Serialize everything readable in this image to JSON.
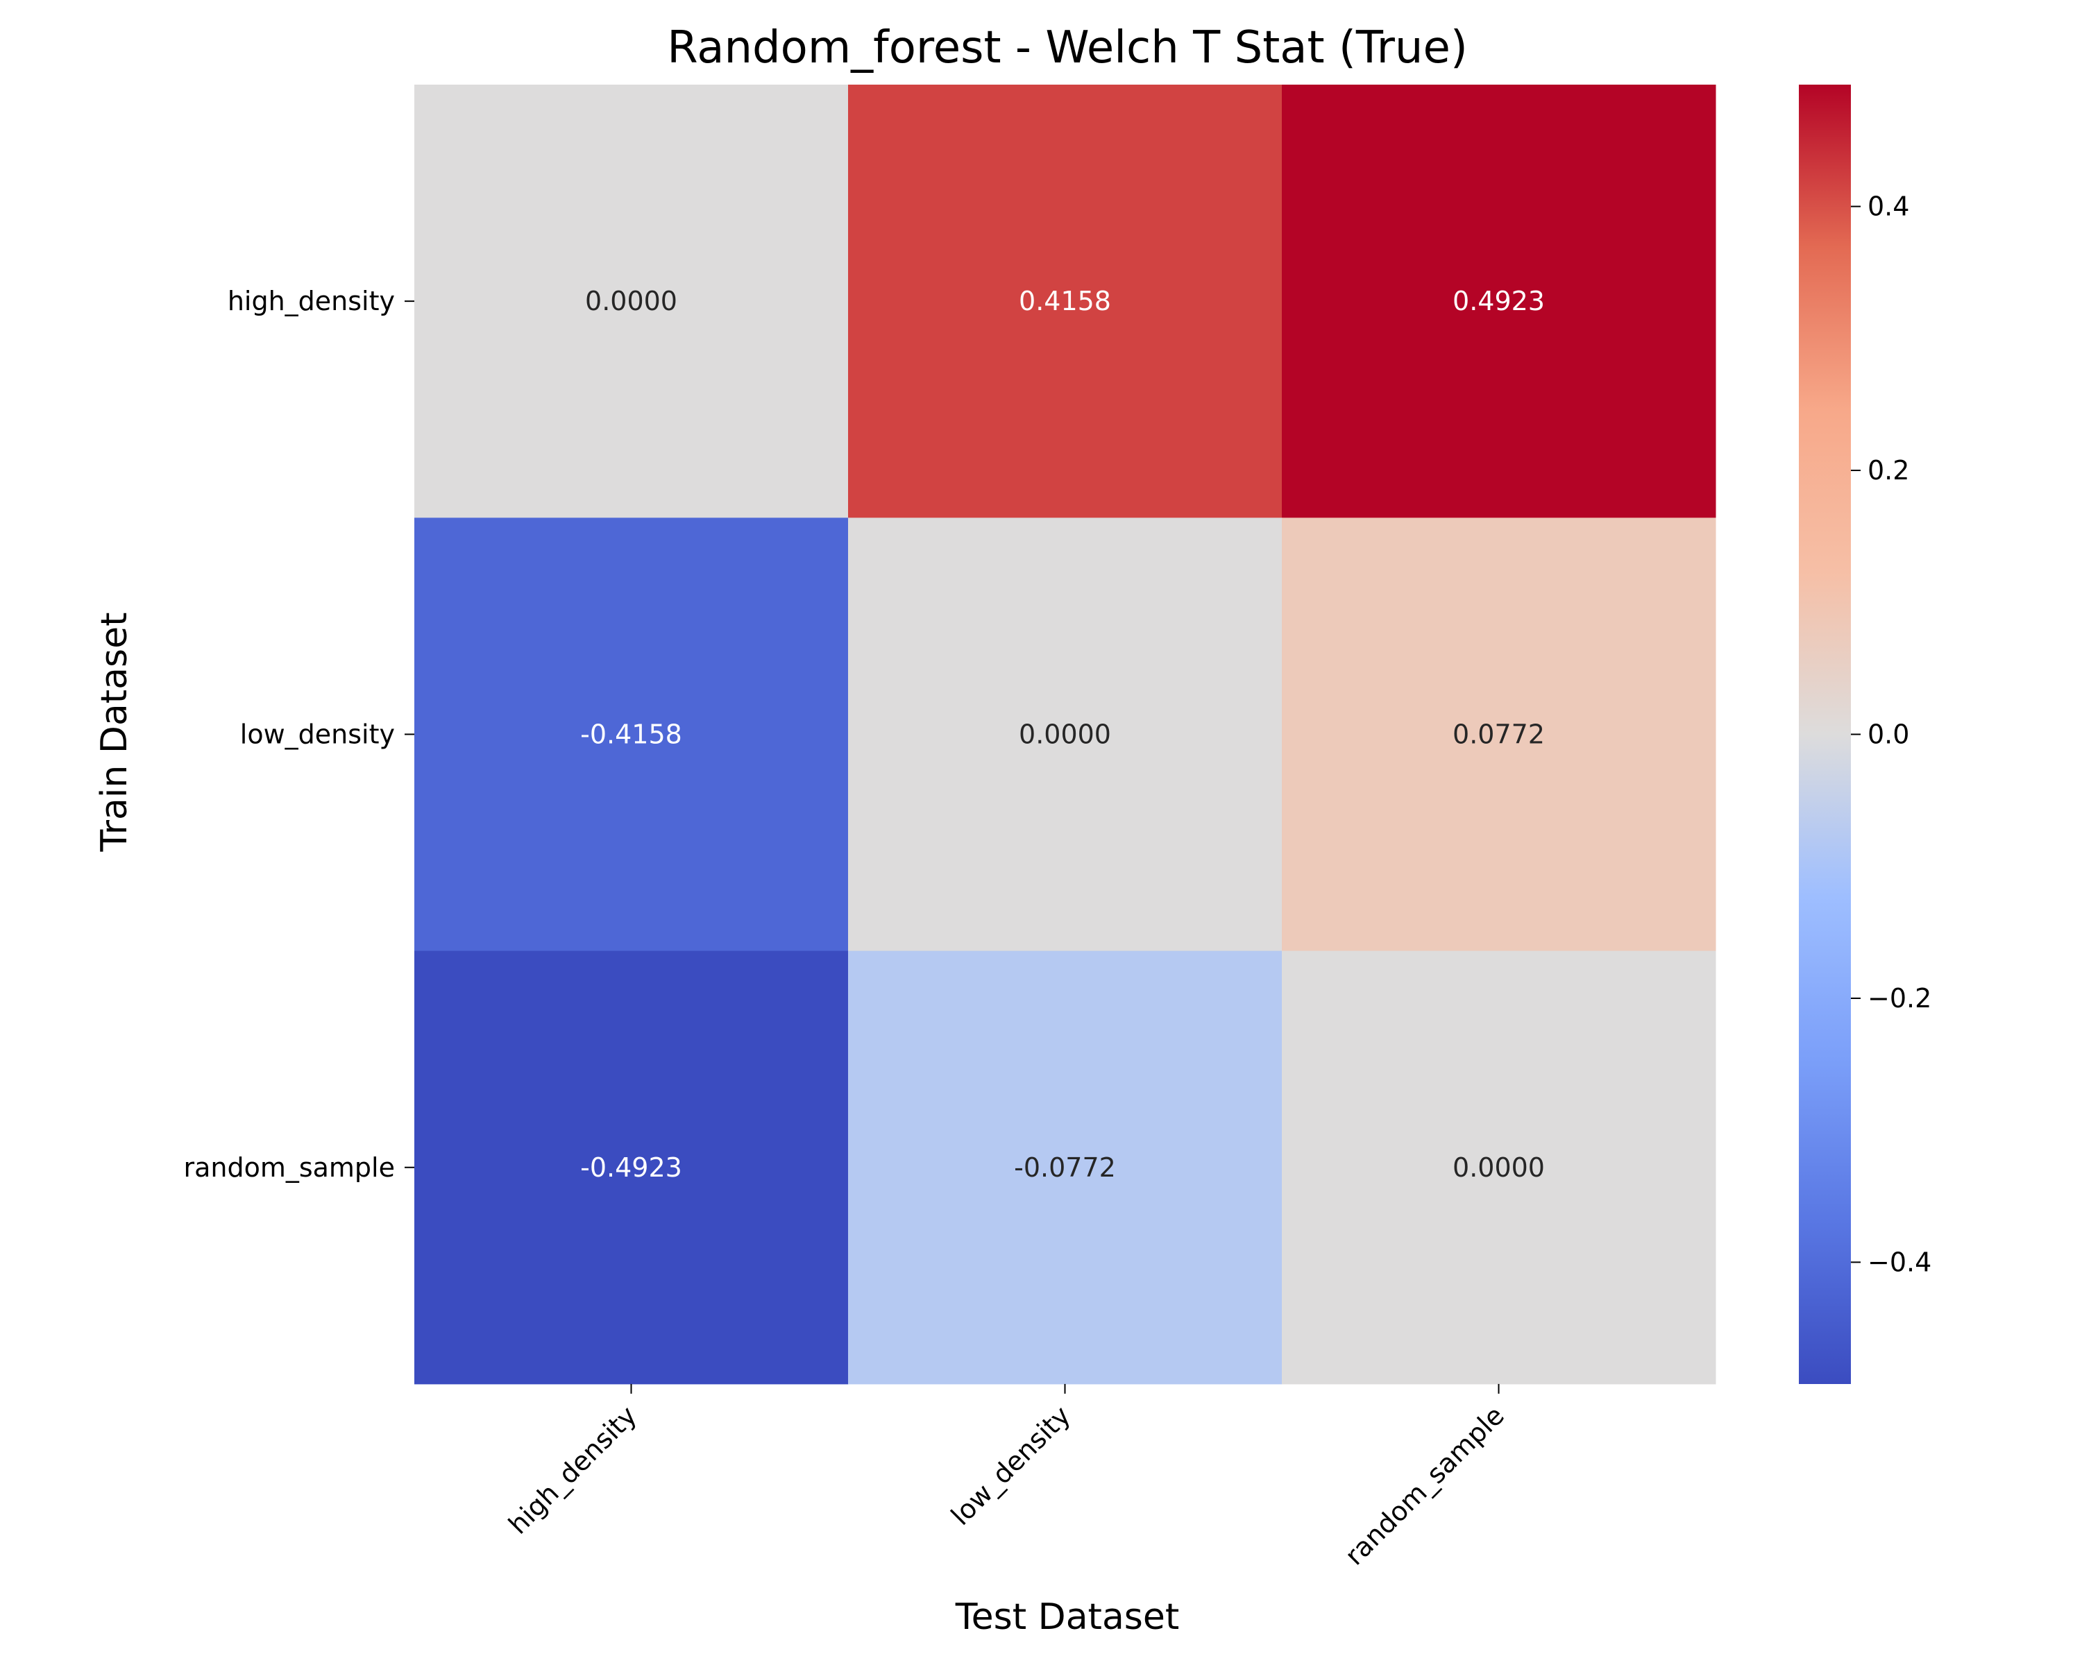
{
  "chart_data": {
    "type": "heatmap",
    "title": "Random_forest - Welch T Stat (True)",
    "xlabel": "Test Dataset",
    "ylabel": "Train Dataset",
    "x_categories": [
      "high_density",
      "low_density",
      "random_sample"
    ],
    "y_categories": [
      "high_density",
      "low_density",
      "random_sample"
    ],
    "values": [
      [
        0.0,
        0.4158,
        0.4923
      ],
      [
        -0.4158,
        0.0,
        0.0772
      ],
      [
        -0.4923,
        -0.0772,
        0.0
      ]
    ],
    "cell_labels": [
      [
        "0.0000",
        "0.4158",
        "0.4923"
      ],
      [
        "-0.4158",
        "0.0000",
        "0.0772"
      ],
      [
        "-0.4923",
        "-0.0772",
        "0.0000"
      ]
    ],
    "colormap": "coolwarm",
    "vmin": -0.4923,
    "vmax": 0.4923,
    "colorbar_ticks": [
      0.4,
      0.2,
      0.0,
      -0.2,
      -0.4
    ],
    "colorbar_tick_labels": [
      "0.4",
      "0.2",
      "0.0",
      "−0.2",
      "−0.4"
    ],
    "grid": false
  }
}
